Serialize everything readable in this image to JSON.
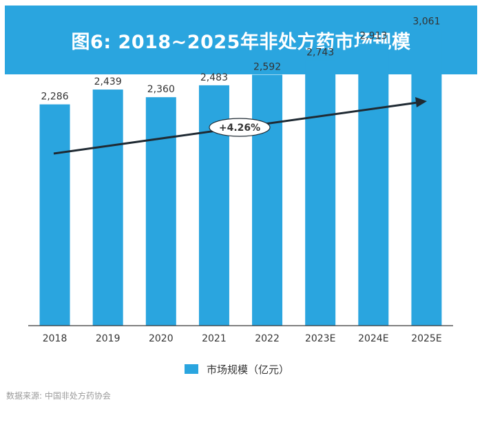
{
  "chart_data": {
    "type": "bar",
    "title": "图6: 2018~2025年非处方药市场规模",
    "categories": [
      "2018",
      "2019",
      "2020",
      "2021",
      "2022",
      "2023E",
      "2024E",
      "2025E"
    ],
    "series": [
      {
        "name": "市场规模（亿元）",
        "values": [
          2286,
          2439,
          2360,
          2483,
          2592,
          2743,
          2913,
          3061
        ],
        "labels": [
          "2,286",
          "2,439",
          "2,360",
          "2,483",
          "2,592",
          "2,743",
          "2,913",
          "3,061"
        ]
      }
    ],
    "ylim": [
      0,
      3300
    ],
    "xlabel": "",
    "ylabel": "",
    "grid": false,
    "legend_position": "bottom-center",
    "annotation": "+4.26%"
  },
  "colors": {
    "bar": "#2aa5df",
    "banner": "#2aa5df",
    "arrow": "#1f2a33",
    "axis": "#333333",
    "text": "#333333"
  },
  "source": "数据来源: 中国非处方药协会"
}
